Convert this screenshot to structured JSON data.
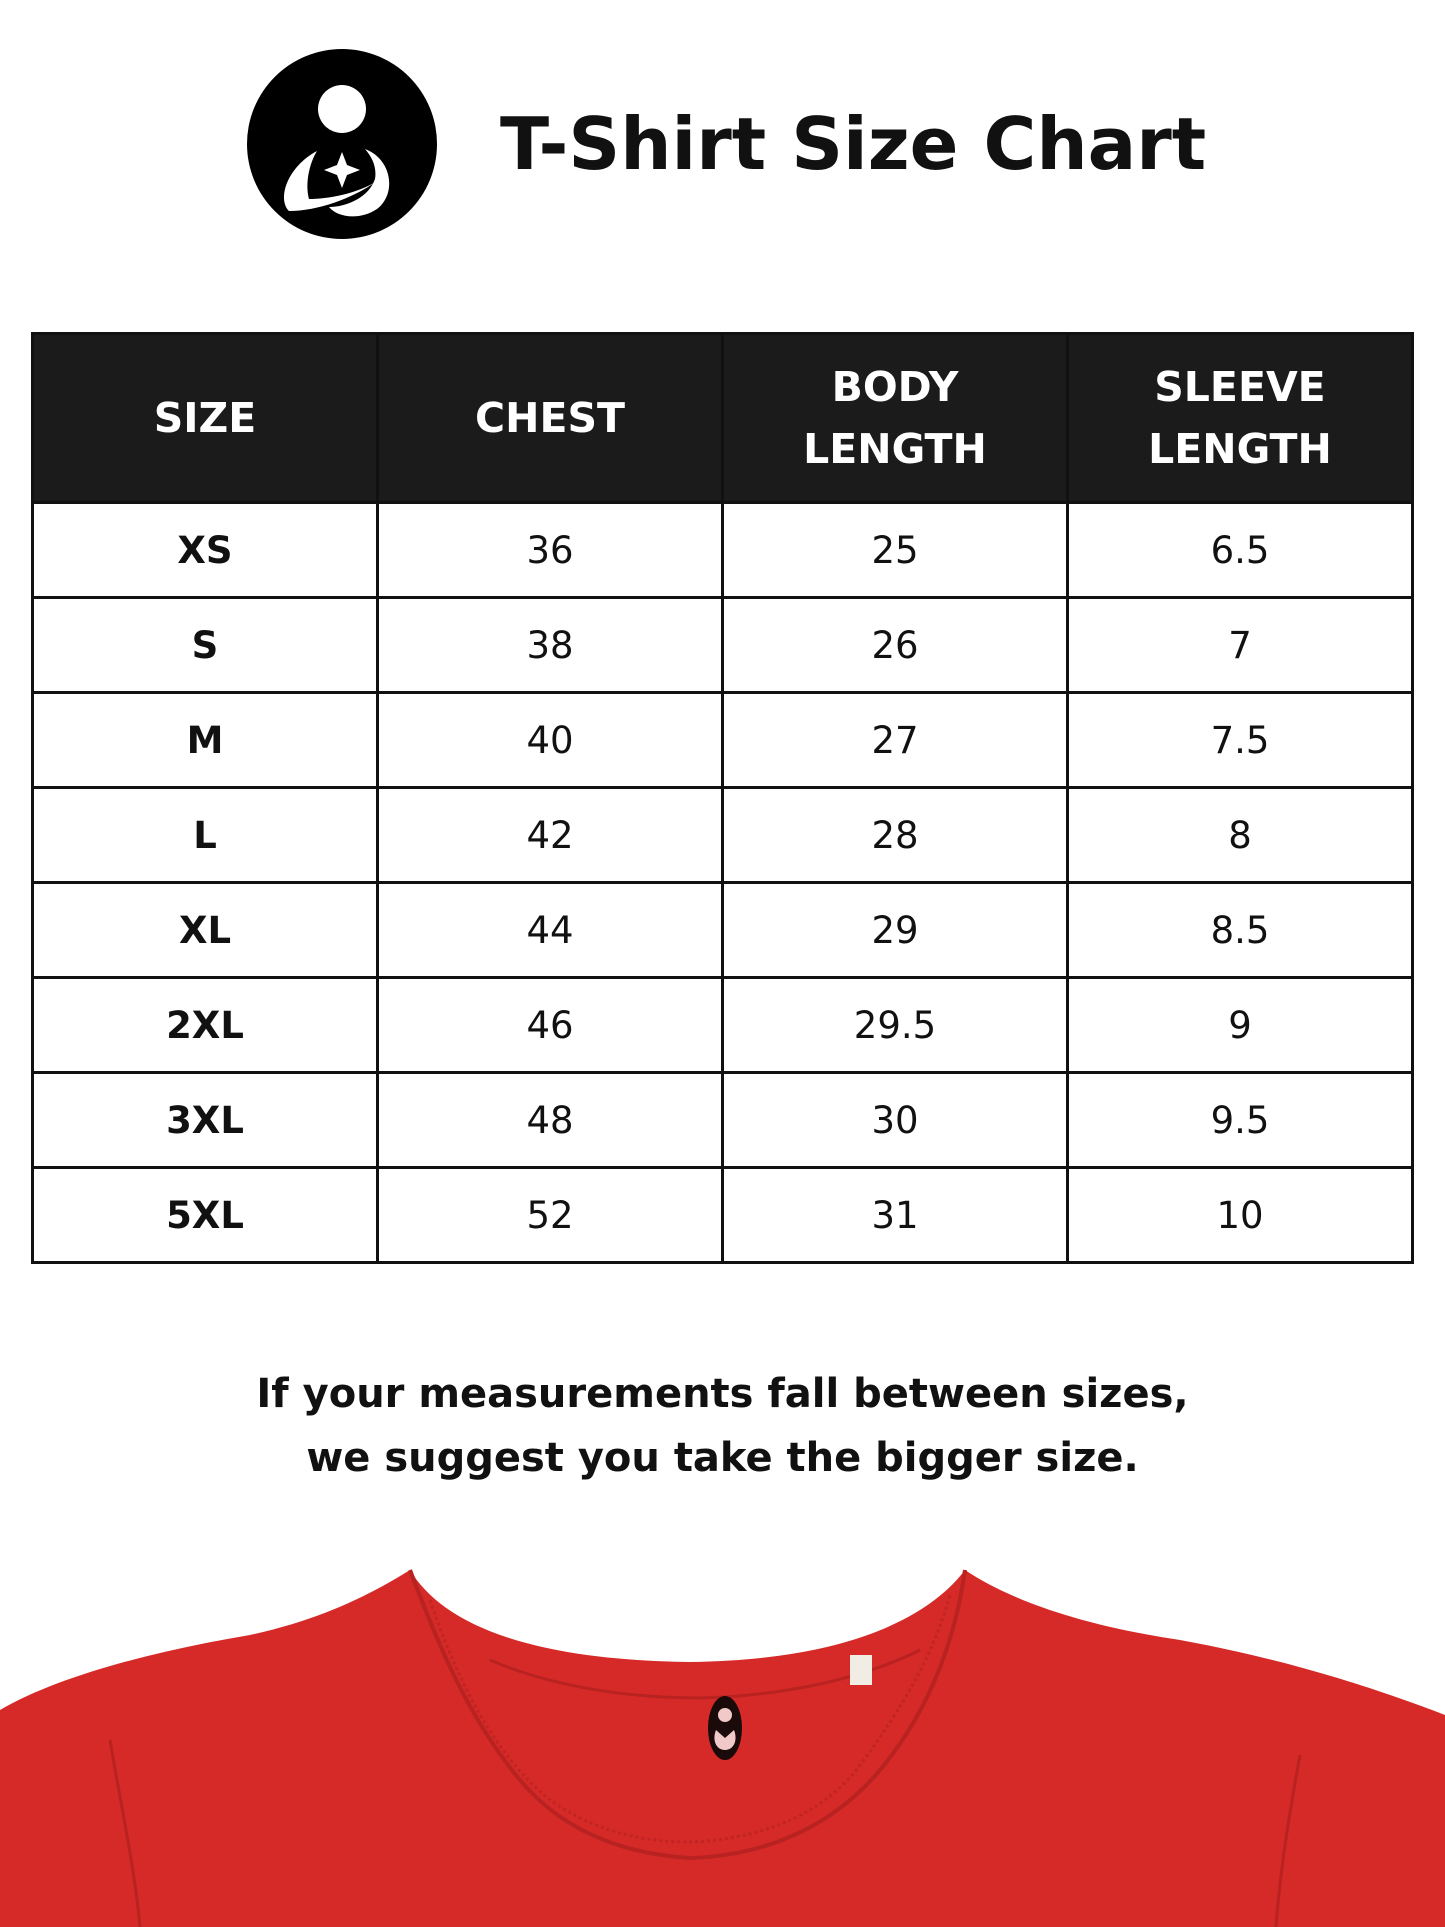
{
  "header": {
    "title": "T-Shirt Size Chart",
    "logo": "mother-and-child-logo"
  },
  "table": {
    "columns": [
      {
        "line1": "SIZE",
        "line2": ""
      },
      {
        "line1": "CHEST",
        "line2": ""
      },
      {
        "line1": "BODY",
        "line2": "LENGTH"
      },
      {
        "line1": "SLEEVE",
        "line2": "LENGTH"
      }
    ],
    "rows": [
      [
        "XS",
        "36",
        "25",
        "6.5"
      ],
      [
        "S",
        "38",
        "26",
        "7"
      ],
      [
        "M",
        "40",
        "27",
        "7.5"
      ],
      [
        "L",
        "42",
        "28",
        "8"
      ],
      [
        "XL",
        "44",
        "29",
        "8.5"
      ],
      [
        "2XL",
        "46",
        "29.5",
        "9"
      ],
      [
        "3XL",
        "48",
        "30",
        "9.5"
      ],
      [
        "5XL",
        "52",
        "31",
        "10"
      ]
    ]
  },
  "note": {
    "line1": "If your measurements fall between sizes,",
    "line2": "we suggest you take the bigger size."
  },
  "colors": {
    "header_bg": "#1b1b1b",
    "shirt": "#d62a28"
  }
}
